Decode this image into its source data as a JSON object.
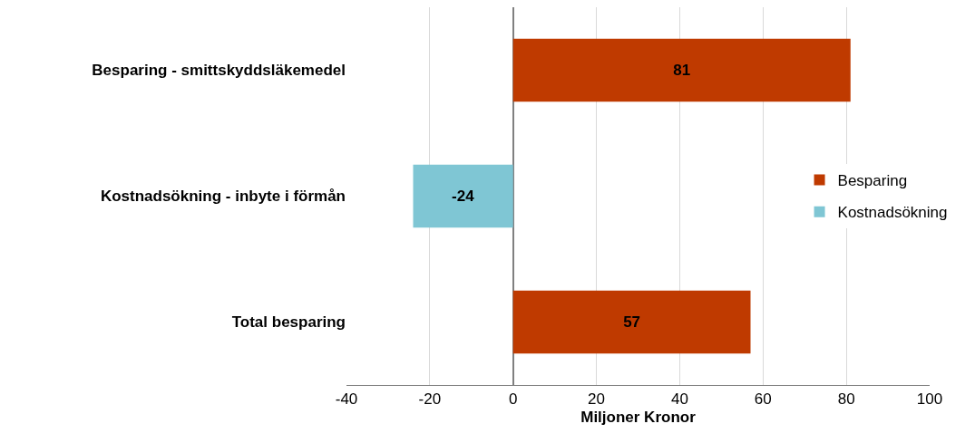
{
  "chart_data": {
    "type": "bar",
    "orientation": "horizontal",
    "xlabel": "Miljoner Kronor",
    "categories": [
      "Besparing - smittskyddsläkemedel",
      "Kostnadsökning - inbyte i förmån",
      "Total besparing"
    ],
    "series": [
      {
        "name": "Besparing",
        "color": "#bf3a00",
        "values": [
          81,
          null,
          57
        ]
      },
      {
        "name": "Kostnadsökning",
        "color": "#7fc6d4",
        "values": [
          null,
          -24,
          null
        ]
      }
    ],
    "xlim": [
      -40,
      100
    ],
    "xticks": [
      -40,
      -20,
      0,
      20,
      40,
      60,
      80,
      100
    ],
    "grid": "x",
    "legend": "right",
    "data_labels": true
  }
}
